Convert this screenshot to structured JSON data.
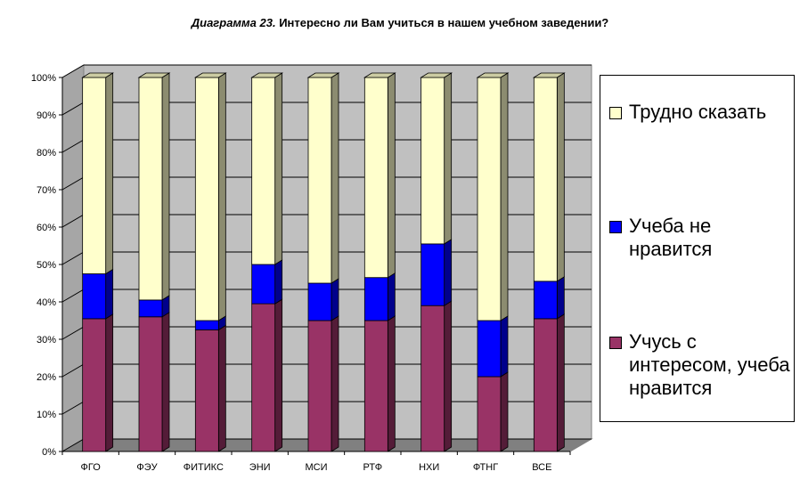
{
  "title_prefix": "Диаграмма 23.",
  "title_text": "Интересно ли Вам учиться в нашем учебном заведении?",
  "chart_data": {
    "type": "bar",
    "stacked": true,
    "percent": true,
    "title": "Диаграмма 23. Интересно ли Вам учиться в нашем учебном заведении?",
    "categories": [
      "ФГО",
      "ФЭУ",
      "ФИТИКС",
      "ЭНИ",
      "МСИ",
      "РТФ",
      "НХИ",
      "ФТНГ",
      "ВСЕ"
    ],
    "series": [
      {
        "name": "Учусь с интересом, учеба нравится",
        "color": "#993366",
        "values": [
          35.5,
          36,
          32.5,
          39.5,
          35,
          35,
          39,
          20,
          35.5
        ]
      },
      {
        "name": "Учеба не нравится",
        "color": "#0000ff",
        "values": [
          12,
          4.5,
          2.5,
          10.5,
          10,
          11.5,
          16.5,
          15,
          10
        ]
      },
      {
        "name": "Трудно сказать",
        "color": "#ffffcc",
        "values": [
          52.5,
          59.5,
          65,
          50,
          55,
          53.5,
          44.5,
          65,
          54.5
        ]
      }
    ],
    "yticks": [
      "0%",
      "10%",
      "20%",
      "30%",
      "40%",
      "50%",
      "60%",
      "70%",
      "80%",
      "90%",
      "100%"
    ],
    "ylim": [
      0,
      100
    ],
    "grid": true,
    "legend_position": "right"
  },
  "legend": [
    {
      "label": "Трудно сказать",
      "color": "#ffffcc"
    },
    {
      "label": "Учеба не нравится",
      "color": "#0000ff"
    },
    {
      "label": "Учусь с интересом, учеба нравится",
      "color": "#993366"
    }
  ]
}
